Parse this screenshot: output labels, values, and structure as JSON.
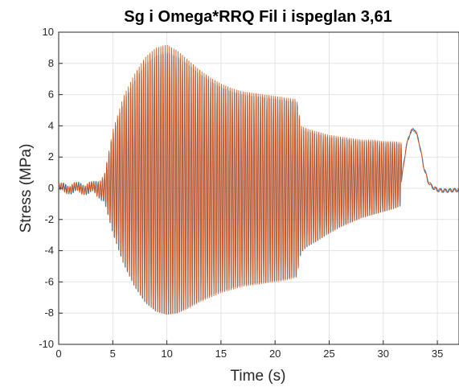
{
  "chart_data": {
    "type": "line",
    "title": "Sg i Omega*RRQ Fil i ispeglan 3,61",
    "xlabel": "Time (s)",
    "ylabel": "Stress (MPa)",
    "xlim": [
      0,
      37
    ],
    "ylim": [
      -10,
      10
    ],
    "xticks": [
      "0",
      "5",
      "10",
      "15",
      "20",
      "25",
      "30",
      "35"
    ],
    "yticks": [
      "10",
      "8",
      "6",
      "4",
      "2",
      "0",
      "-2",
      "-4",
      "-6",
      "-8",
      "-10"
    ],
    "grid": true,
    "oscillation_frequency_hz": 5,
    "series": [
      {
        "color": "#0072BD",
        "envelope_time_s": [
          0,
          3.3,
          4.2,
          5,
          6,
          7,
          8,
          9,
          10,
          11,
          12,
          13,
          14,
          15,
          16,
          17,
          18,
          19,
          20,
          21,
          22,
          22.4,
          23,
          24,
          25,
          26,
          27,
          28,
          29,
          30,
          31,
          31.7
        ],
        "upper_mpa": [
          0.2,
          0.3,
          0.8,
          3.6,
          5.8,
          7.2,
          8.3,
          8.9,
          9.1,
          8.8,
          8.3,
          7.7,
          7.2,
          6.8,
          6.5,
          6.3,
          6.2,
          6.1,
          6.0,
          5.9,
          5.8,
          4.0,
          3.8,
          3.6,
          3.4,
          3.3,
          3.2,
          3.1,
          3.1,
          3.0,
          3.0,
          2.9
        ],
        "lower_mpa": [
          -0.2,
          -0.3,
          -0.8,
          -3.0,
          -5.1,
          -6.6,
          -7.7,
          -8.3,
          -8.5,
          -8.4,
          -8.0,
          -7.6,
          -7.2,
          -6.9,
          -6.7,
          -6.5,
          -6.4,
          -6.3,
          -6.2,
          -6.1,
          -5.9,
          -4.3,
          -3.9,
          -3.5,
          -3.0,
          -2.6,
          -2.3,
          -2.0,
          -1.8,
          -1.6,
          -1.4,
          -1.2
        ]
      },
      {
        "color": "#D95319",
        "envelope_time_s": [
          0,
          3.3,
          4.2,
          5,
          6,
          7,
          8,
          9,
          10,
          11,
          12,
          13,
          14,
          15,
          16,
          17,
          18,
          19,
          20,
          21,
          22,
          22.4,
          23,
          24,
          25,
          26,
          27,
          28,
          29,
          30,
          31,
          31.7
        ],
        "upper_mpa": [
          0.2,
          0.3,
          0.8,
          3.7,
          5.9,
          7.3,
          8.4,
          9.0,
          9.2,
          8.8,
          8.2,
          7.6,
          7.1,
          6.7,
          6.4,
          6.2,
          6.1,
          6.0,
          5.9,
          5.8,
          5.7,
          4.0,
          3.8,
          3.6,
          3.4,
          3.3,
          3.2,
          3.1,
          3.1,
          3.0,
          3.0,
          2.9
        ],
        "lower_mpa": [
          -0.2,
          -0.3,
          -0.7,
          -2.8,
          -4.8,
          -6.3,
          -7.3,
          -7.9,
          -8.1,
          -8.0,
          -7.7,
          -7.3,
          -7.0,
          -6.7,
          -6.5,
          -6.3,
          -6.2,
          -6.1,
          -6.0,
          -5.9,
          -5.7,
          -4.1,
          -3.7,
          -3.3,
          -2.9,
          -2.5,
          -2.2,
          -1.9,
          -1.7,
          -1.5,
          -1.3,
          -1.1
        ]
      }
    ],
    "tail_time_s": [
      31.7,
      32.1,
      32.5,
      32.9,
      33.3,
      33.7,
      34.1,
      34.5,
      35.0,
      35.5,
      36.0,
      37.0
    ],
    "tail_mpa": [
      0.6,
      2.6,
      3.6,
      3.8,
      3.0,
      1.5,
      0.5,
      0.1,
      -0.1,
      -0.15,
      -0.15,
      -0.1
    ]
  }
}
